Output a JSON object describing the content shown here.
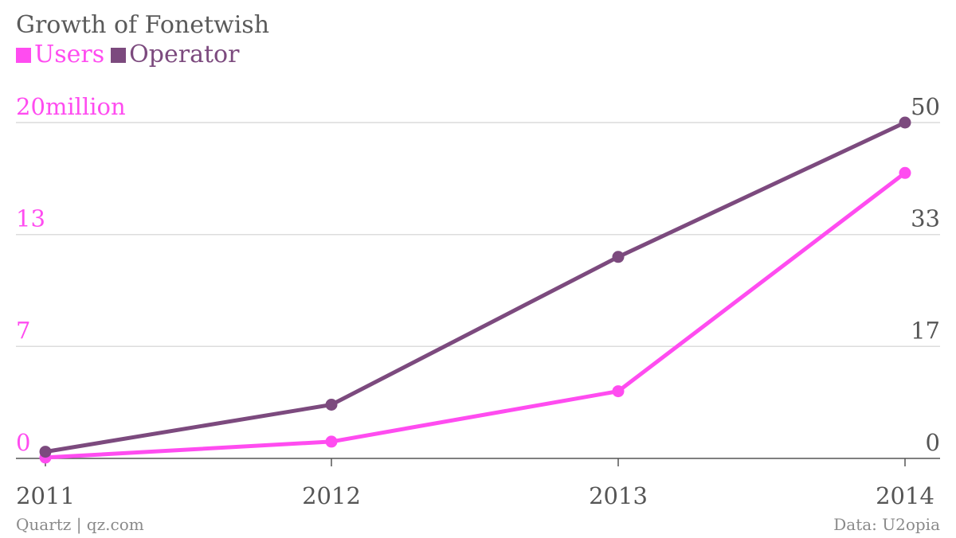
{
  "chart_data": {
    "type": "line",
    "title": "Growth of Fonetwish",
    "categories": [
      "2011",
      "2012",
      "2013",
      "2014"
    ],
    "y_left": {
      "ticks": [
        {
          "value": 0,
          "label": "0"
        },
        {
          "value": 6.67,
          "label": "7"
        },
        {
          "value": 13.33,
          "label": "13"
        },
        {
          "value": 20,
          "label": "20million"
        }
      ],
      "range": [
        0,
        20
      ],
      "color": "#ff4cf0"
    },
    "y_right": {
      "ticks": [
        {
          "value": 0,
          "label": "0"
        },
        {
          "value": 16.67,
          "label": "17"
        },
        {
          "value": 33.33,
          "label": "33"
        },
        {
          "value": 50,
          "label": "50"
        }
      ],
      "range": [
        0,
        50
      ]
    },
    "series": [
      {
        "name": "Users",
        "axis": "left",
        "color": "#ff4cf0",
        "values": [
          0.05,
          1.0,
          4.0,
          17.0
        ]
      },
      {
        "name": "Operator",
        "axis": "right",
        "color": "#7c4a7e",
        "values": [
          1,
          8,
          30,
          50
        ]
      }
    ],
    "grid": true,
    "legend_position": "top-left"
  },
  "footer": {
    "source_left": "Quartz | qz.com",
    "source_right": "Data: U2opia"
  }
}
